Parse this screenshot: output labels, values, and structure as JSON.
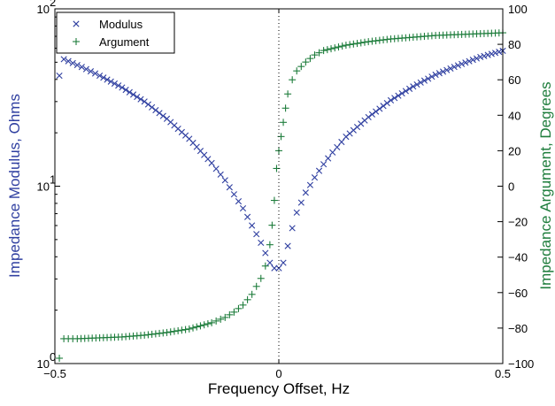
{
  "colors": {
    "modulus": "#2f3fa0",
    "argument": "#1e7d3c",
    "axis": "#000000"
  },
  "chart_data": {
    "type": "scatter",
    "title": "",
    "xlabel": "Frequency Offset, Hz",
    "ylabel_left": "Impedance Modulus, Ohms",
    "ylabel_right": "Impedance Argument, Degrees",
    "xlim": [
      -0.5,
      0.5
    ],
    "ylim_left": [
      1,
      100
    ],
    "yscale_left": "log",
    "ylim_right": [
      -100,
      100
    ],
    "grid": false,
    "legend_position": "top-left",
    "vline": {
      "x": 0,
      "style": "dotted"
    },
    "x_ticks": [
      -0.5,
      0,
      0.5
    ],
    "x_tick_labels": [
      "−0.5",
      "0",
      "0.5"
    ],
    "y_left_ticks": [
      1,
      10,
      100
    ],
    "y_right_ticks": [
      -100,
      -80,
      -60,
      -40,
      -20,
      0,
      20,
      40,
      60,
      80,
      100
    ],
    "y_right_tick_labels": [
      "−100",
      "−80",
      "−60",
      "−40",
      "−20",
      "0",
      "20",
      "40",
      "60",
      "80",
      "100"
    ],
    "series": [
      {
        "name": "Modulus",
        "marker": "x",
        "axis": "left",
        "color": "#2f3fa0",
        "x": [
          -0.49,
          -0.48,
          -0.44,
          -0.4,
          -0.35,
          -0.3,
          -0.25,
          -0.2,
          -0.15,
          -0.12,
          -0.1,
          -0.08,
          -0.06,
          -0.04,
          -0.03,
          -0.02,
          -0.01,
          0,
          0.01,
          0.02,
          0.03,
          0.04,
          0.06,
          0.08,
          0.1,
          0.12,
          0.15,
          0.2,
          0.25,
          0.3,
          0.35,
          0.4,
          0.45,
          0.5
        ],
        "y": [
          42,
          52,
          47,
          42,
          36,
          30,
          24,
          18.5,
          13.5,
          10.8,
          9.0,
          7.5,
          6.0,
          4.8,
          4.2,
          3.7,
          3.45,
          3.45,
          3.7,
          4.6,
          5.8,
          7.1,
          9.2,
          11.2,
          13.3,
          15.5,
          19.0,
          24.5,
          30.5,
          36.5,
          42.5,
          48,
          53.5,
          58
        ]
      },
      {
        "name": "Argument",
        "marker": "+",
        "axis": "right",
        "color": "#1e7d3c",
        "x": [
          -0.49,
          -0.48,
          -0.45,
          -0.4,
          -0.35,
          -0.3,
          -0.25,
          -0.2,
          -0.15,
          -0.12,
          -0.1,
          -0.08,
          -0.06,
          -0.04,
          -0.03,
          -0.02,
          -0.015,
          -0.01,
          -0.005,
          0,
          0.005,
          0.01,
          0.015,
          0.02,
          0.03,
          0.04,
          0.06,
          0.08,
          0.1,
          0.15,
          0.2,
          0.25,
          0.3,
          0.35,
          0.4,
          0.45,
          0.5
        ],
        "y": [
          -97,
          -86,
          -86,
          -85.5,
          -85,
          -84,
          -82.5,
          -80.5,
          -77,
          -74,
          -71,
          -67,
          -61,
          -52,
          -45,
          -33,
          -22,
          -8,
          10,
          20,
          28,
          36,
          44,
          52,
          60,
          65,
          70,
          74,
          76.5,
          79.5,
          81.5,
          83,
          84,
          85,
          85.5,
          86,
          86.5
        ]
      }
    ]
  }
}
